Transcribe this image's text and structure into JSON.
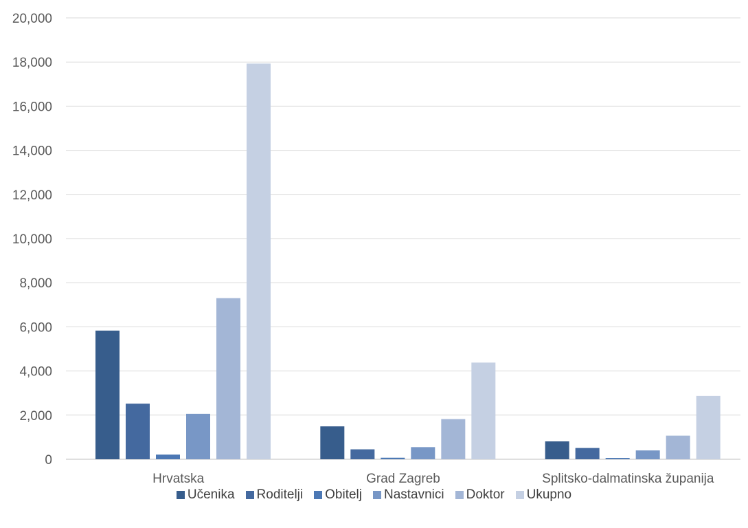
{
  "chart_data": {
    "type": "bar",
    "title": "",
    "xlabel": "",
    "ylabel": "",
    "categories": [
      "Hrvatska",
      "Grad Zagreb",
      "Splitsko-dalmatinska županija"
    ],
    "ylim": [
      0,
      20000
    ],
    "yticks": [
      "0",
      "2,000",
      "4,000",
      "6,000",
      "8,000",
      "10,000",
      "12,000",
      "14,000",
      "16,000",
      "18,000",
      "20,000"
    ],
    "grid": true,
    "legend_position": "bottom",
    "series": [
      {
        "name": "Učenika",
        "color": "#375d8c",
        "values": [
          5830,
          1490,
          810
        ]
      },
      {
        "name": "Roditelji",
        "color": "#44699f",
        "values": [
          2520,
          450,
          510
        ]
      },
      {
        "name": "Obitelj",
        "color": "#4c78b4",
        "values": [
          210,
          70,
          60
        ]
      },
      {
        "name": "Nastavnici",
        "color": "#7897c6",
        "values": [
          2060,
          550,
          400
        ]
      },
      {
        "name": "Doktor",
        "color": "#a3b6d6",
        "values": [
          7300,
          1820,
          1070
        ]
      },
      {
        "name": "Ukupno",
        "color": "#c5d0e3",
        "values": [
          17930,
          4380,
          2870
        ]
      }
    ]
  }
}
